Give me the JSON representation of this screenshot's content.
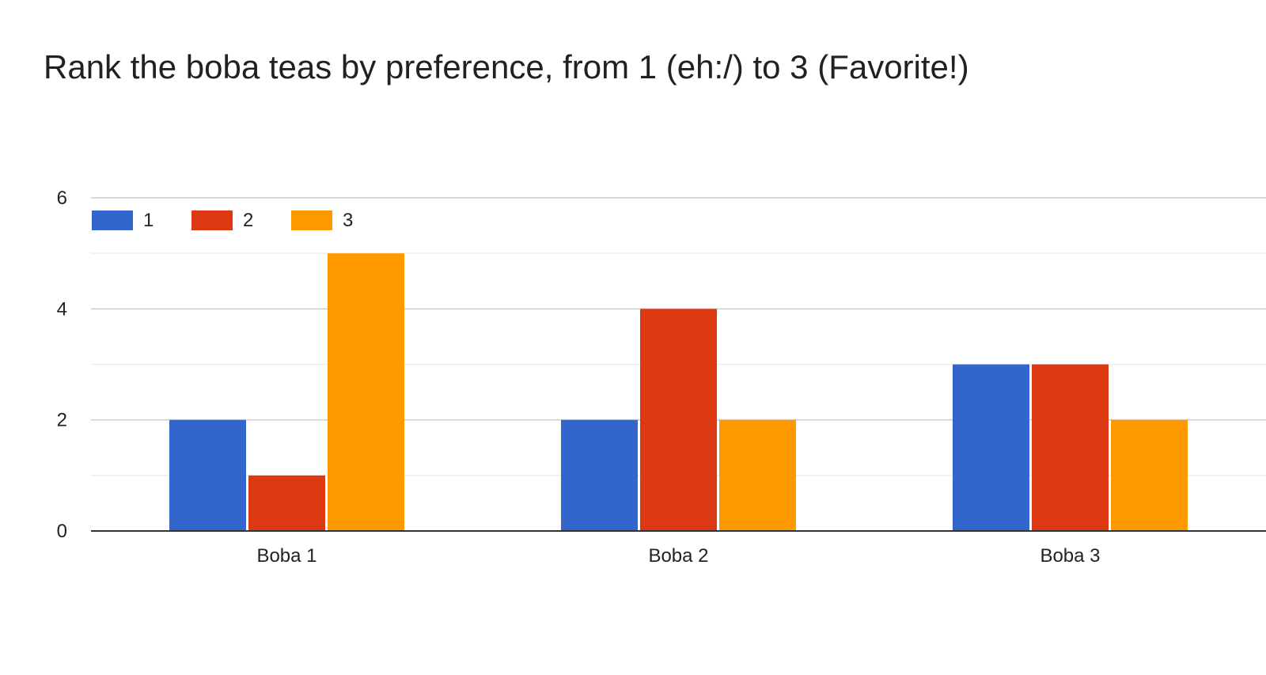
{
  "chart_data": {
    "type": "bar",
    "title": "Rank the boba teas by preference, from 1 (eh:/) to 3 (Favorite!)",
    "categories": [
      "Boba 1",
      "Boba 2",
      "Boba 3"
    ],
    "series": [
      {
        "name": "1",
        "values": [
          2,
          2,
          3
        ],
        "color": "#3366cc"
      },
      {
        "name": "2",
        "values": [
          1,
          4,
          3
        ],
        "color": "#dc3912"
      },
      {
        "name": "3",
        "values": [
          5,
          2,
          2
        ],
        "color": "#ff9900"
      }
    ],
    "xlabel": "",
    "ylabel": "",
    "ylim": [
      0,
      6
    ],
    "yticks": [
      "0",
      "2",
      "4",
      "6"
    ],
    "grid": true,
    "legend_position": "top-left"
  }
}
